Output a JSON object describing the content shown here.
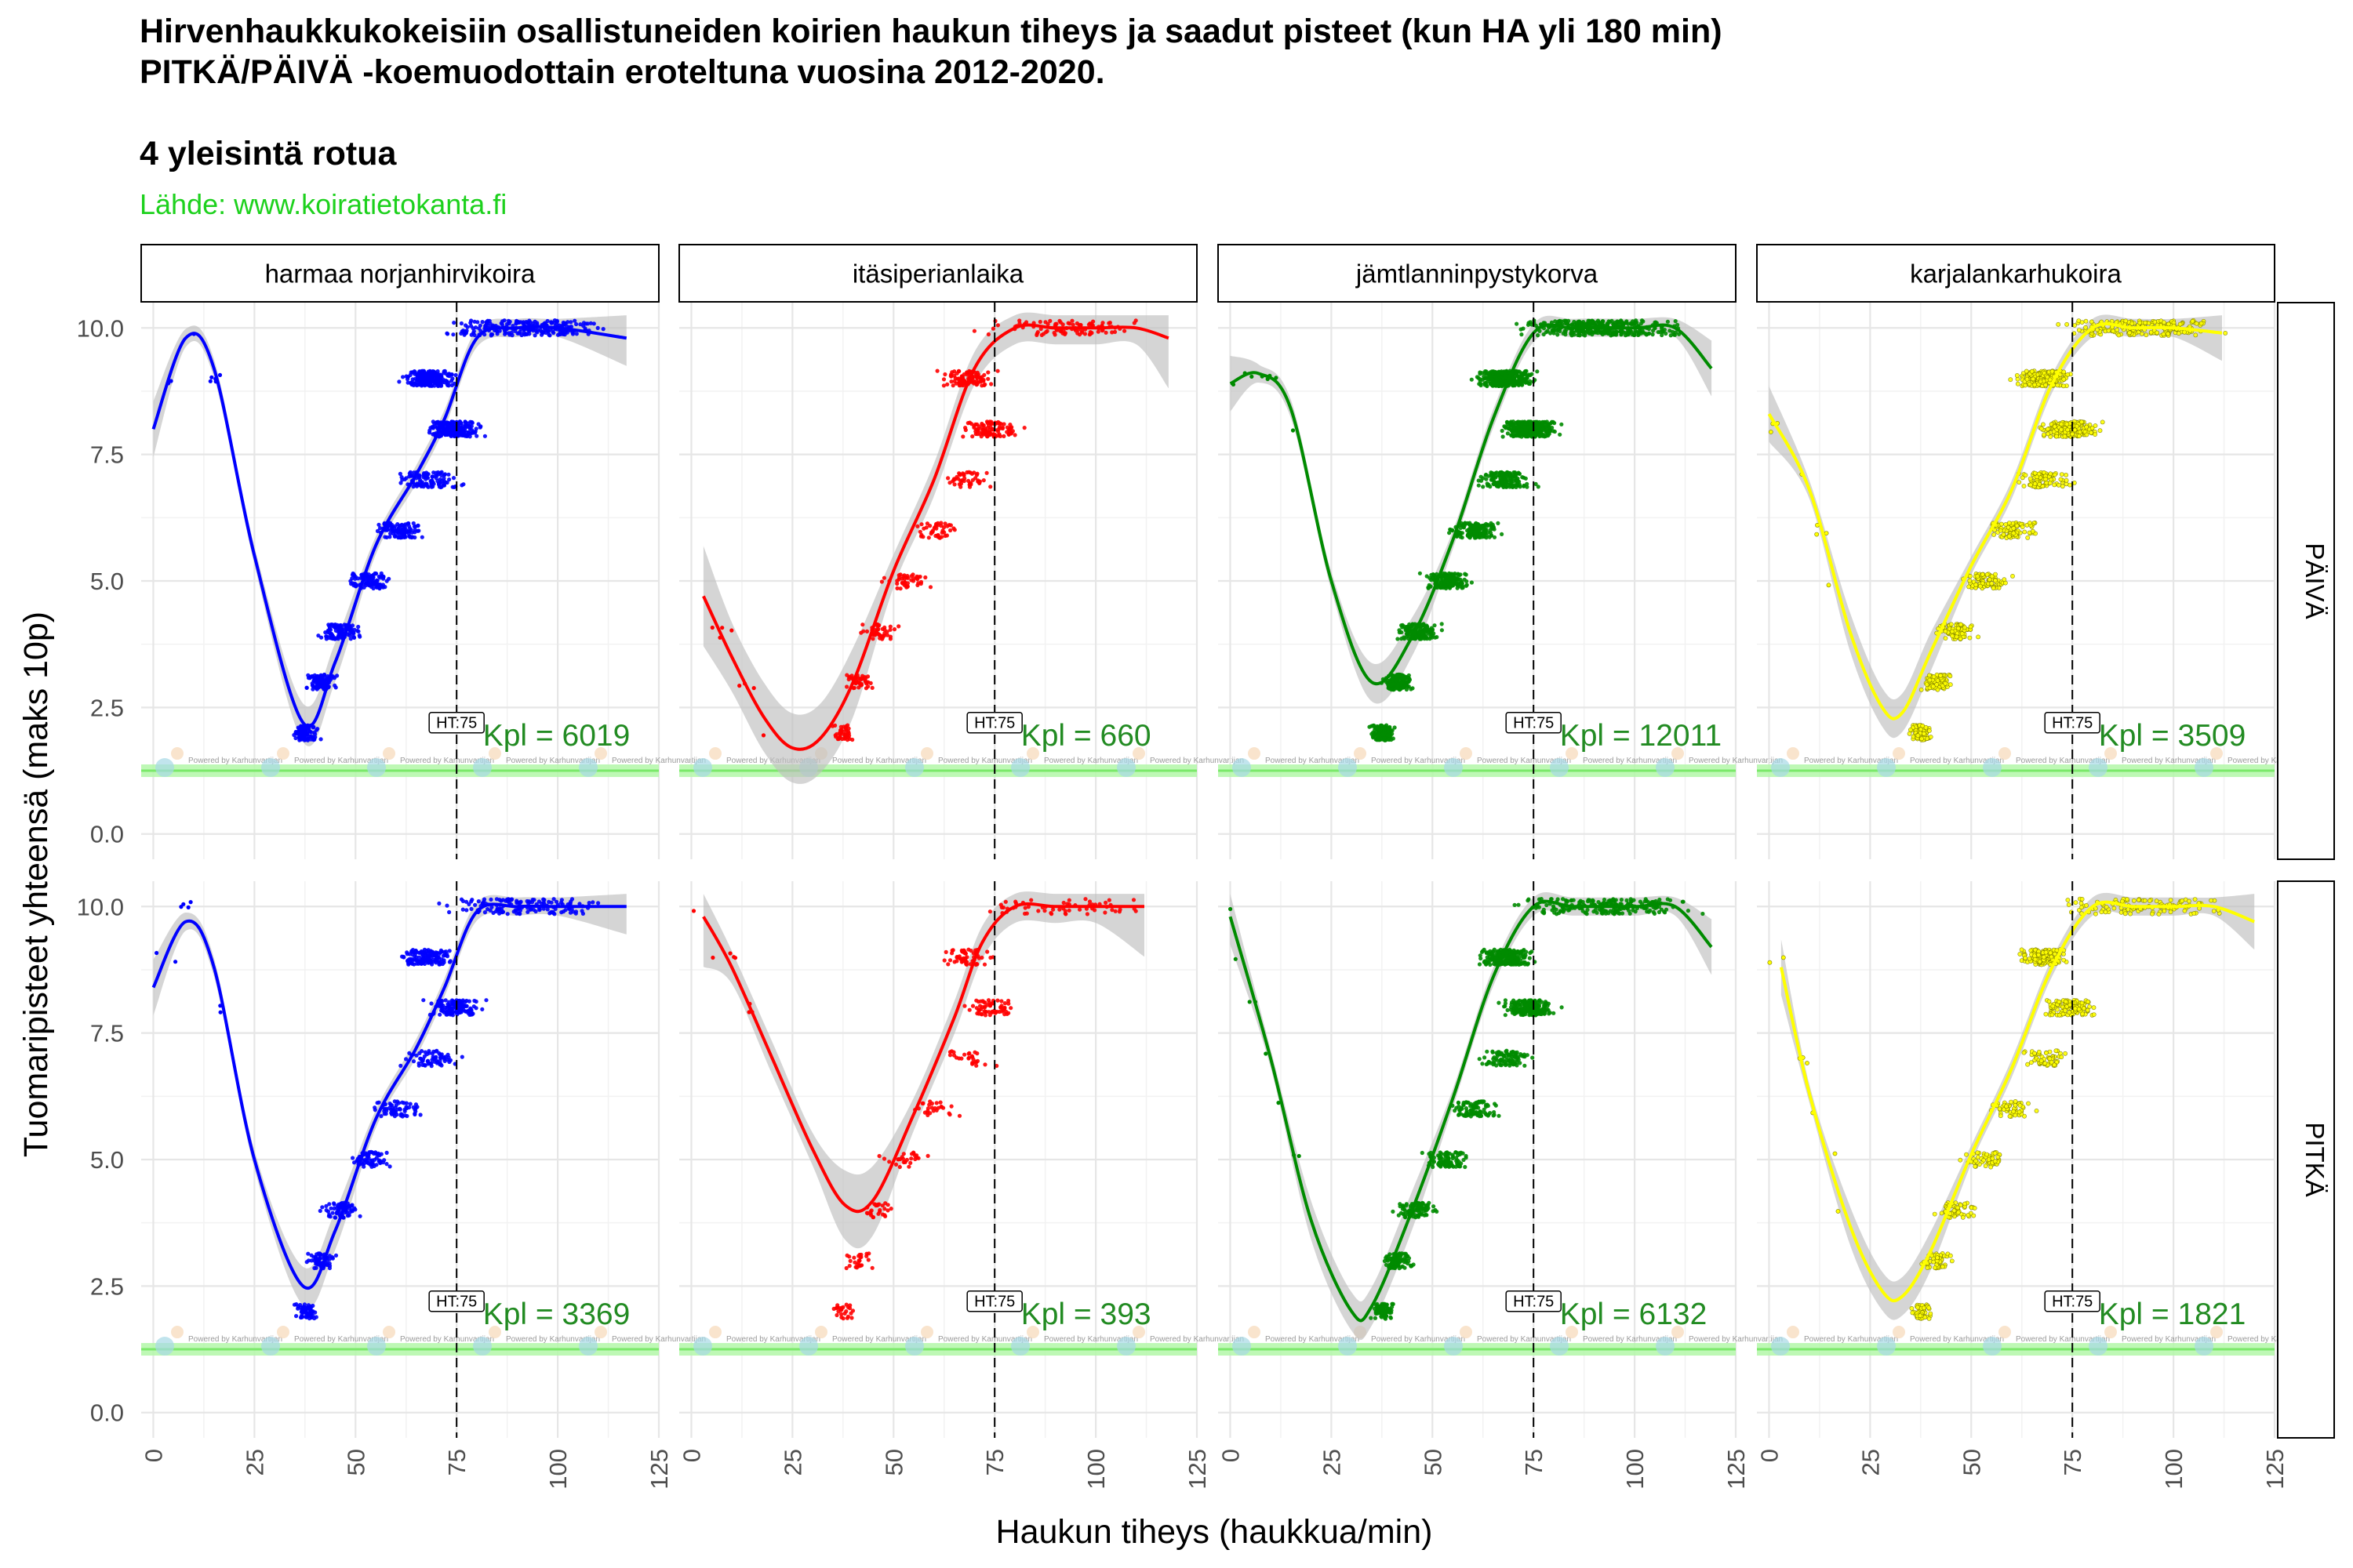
{
  "title_line1": "Hirvenhaukkukokeisiin osallistuneiden koirien haukun tiheys ja saadut pisteet (kun HA yli 180 min)",
  "title_line2": "PITKÄ/PÄIVÄ -koemuodottain eroteltuna vuosina 2012-2020.",
  "subtitle": "4 yleisintä rotua",
  "source": "Lähde: www.koiratietokanta.fi",
  "watermark": "Powered by Karhunvartijan",
  "chart_data": {
    "type": "scatter",
    "xlabel": "Haukun tiheys (haukkua/min)",
    "ylabel": "Tuomaripisteet yhteensä (maks 10p)",
    "xlim": [
      -3,
      125
    ],
    "ylim": [
      -0.5,
      10.5
    ],
    "x_ticks": [
      0,
      25,
      50,
      75,
      100,
      125
    ],
    "y_ticks": [
      0.0,
      2.5,
      5.0,
      7.5,
      10.0
    ],
    "y_tick_labels": [
      "0.0",
      "2.5",
      "5.0",
      "7.5",
      "10.0"
    ],
    "reference_line": {
      "x": 75,
      "label": "HT:75"
    },
    "count_color": "#228b22",
    "band_color": "#bebebe",
    "rows": [
      "PÄIVÄ",
      "PITKÄ"
    ],
    "series": [
      {
        "name": "harmaa norjanhirvikoira",
        "color": "#0000ff",
        "counts": [
          "Kpl = 6019",
          "Kpl = 3369"
        ]
      },
      {
        "name": "itäsiperianlaika",
        "color": "#ff0000",
        "counts": [
          "Kpl = 660",
          "Kpl = 393"
        ]
      },
      {
        "name": "jämtlanninpystykorva",
        "color": "#008b00",
        "counts": [
          "Kpl = 12011",
          "Kpl = 6132"
        ]
      },
      {
        "name": "karjalankarhukoira",
        "color": "#ffff00",
        "counts": [
          "Kpl = 3509",
          "Kpl = 1821"
        ]
      }
    ],
    "smooth_curves": [
      [
        {
          "x": [
            0,
            8,
            15,
            25,
            37,
            45,
            55,
            65,
            72,
            80,
            90,
            100,
            117
          ],
          "y": [
            8.0,
            9.8,
            9.2,
            5.5,
            2.2,
            3.4,
            5.7,
            7.1,
            8.2,
            9.8,
            10.0,
            10.0,
            9.8
          ]
        },
        {
          "x": [
            0,
            8,
            15,
            25,
            37,
            45,
            55,
            65,
            72,
            80,
            90,
            100,
            117
          ],
          "y": [
            8.4,
            9.7,
            8.8,
            5.0,
            2.5,
            3.6,
            5.8,
            7.2,
            8.4,
            9.9,
            10.0,
            10.0,
            10.0
          ]
        }
      ],
      [
        {
          "x": [
            3,
            10,
            18,
            25,
            32,
            40,
            50,
            60,
            70,
            80,
            90,
            100,
            110,
            118
          ],
          "y": [
            4.7,
            3.5,
            2.3,
            1.7,
            1.9,
            3.0,
            5.2,
            7.0,
            9.2,
            10.0,
            10.0,
            10.0,
            10.0,
            9.8
          ]
        },
        {
          "x": [
            3,
            10,
            20,
            30,
            38,
            45,
            55,
            65,
            72,
            80,
            90,
            100,
            112
          ],
          "y": [
            9.8,
            8.8,
            7.0,
            5.2,
            4.1,
            4.2,
            5.9,
            7.8,
            9.3,
            10.0,
            10.0,
            10.0,
            10.0
          ]
        }
      ],
      [
        {
          "x": [
            0,
            7,
            15,
            25,
            35,
            45,
            55,
            65,
            75,
            85,
            100,
            110,
            119
          ],
          "y": [
            8.9,
            9.1,
            8.4,
            5.0,
            3.0,
            3.9,
            5.8,
            8.2,
            9.9,
            10.0,
            10.0,
            10.0,
            9.2
          ]
        },
        {
          "x": [
            0,
            10,
            20,
            30,
            35,
            45,
            55,
            65,
            75,
            85,
            100,
            110,
            119
          ],
          "y": [
            9.8,
            7.0,
            3.8,
            2.0,
            2.1,
            4.0,
            6.2,
            8.6,
            10.0,
            10.0,
            10.0,
            10.0,
            9.2
          ]
        }
      ],
      [
        {
          "x": [
            0,
            10,
            20,
            28,
            33,
            40,
            50,
            60,
            70,
            80,
            90,
            100,
            112
          ],
          "y": [
            8.3,
            6.8,
            4.0,
            2.5,
            2.4,
            3.6,
            5.3,
            6.8,
            8.9,
            10.0,
            10.0,
            10.0,
            9.9
          ]
        },
        {
          "x": [
            3,
            10,
            20,
            28,
            33,
            40,
            50,
            60,
            70,
            80,
            90,
            100,
            110,
            120
          ],
          "y": [
            8.8,
            6.3,
            3.7,
            2.4,
            2.3,
            3.2,
            5.1,
            6.8,
            8.8,
            10.0,
            10.0,
            10.0,
            10.0,
            9.7
          ]
        }
      ]
    ]
  }
}
